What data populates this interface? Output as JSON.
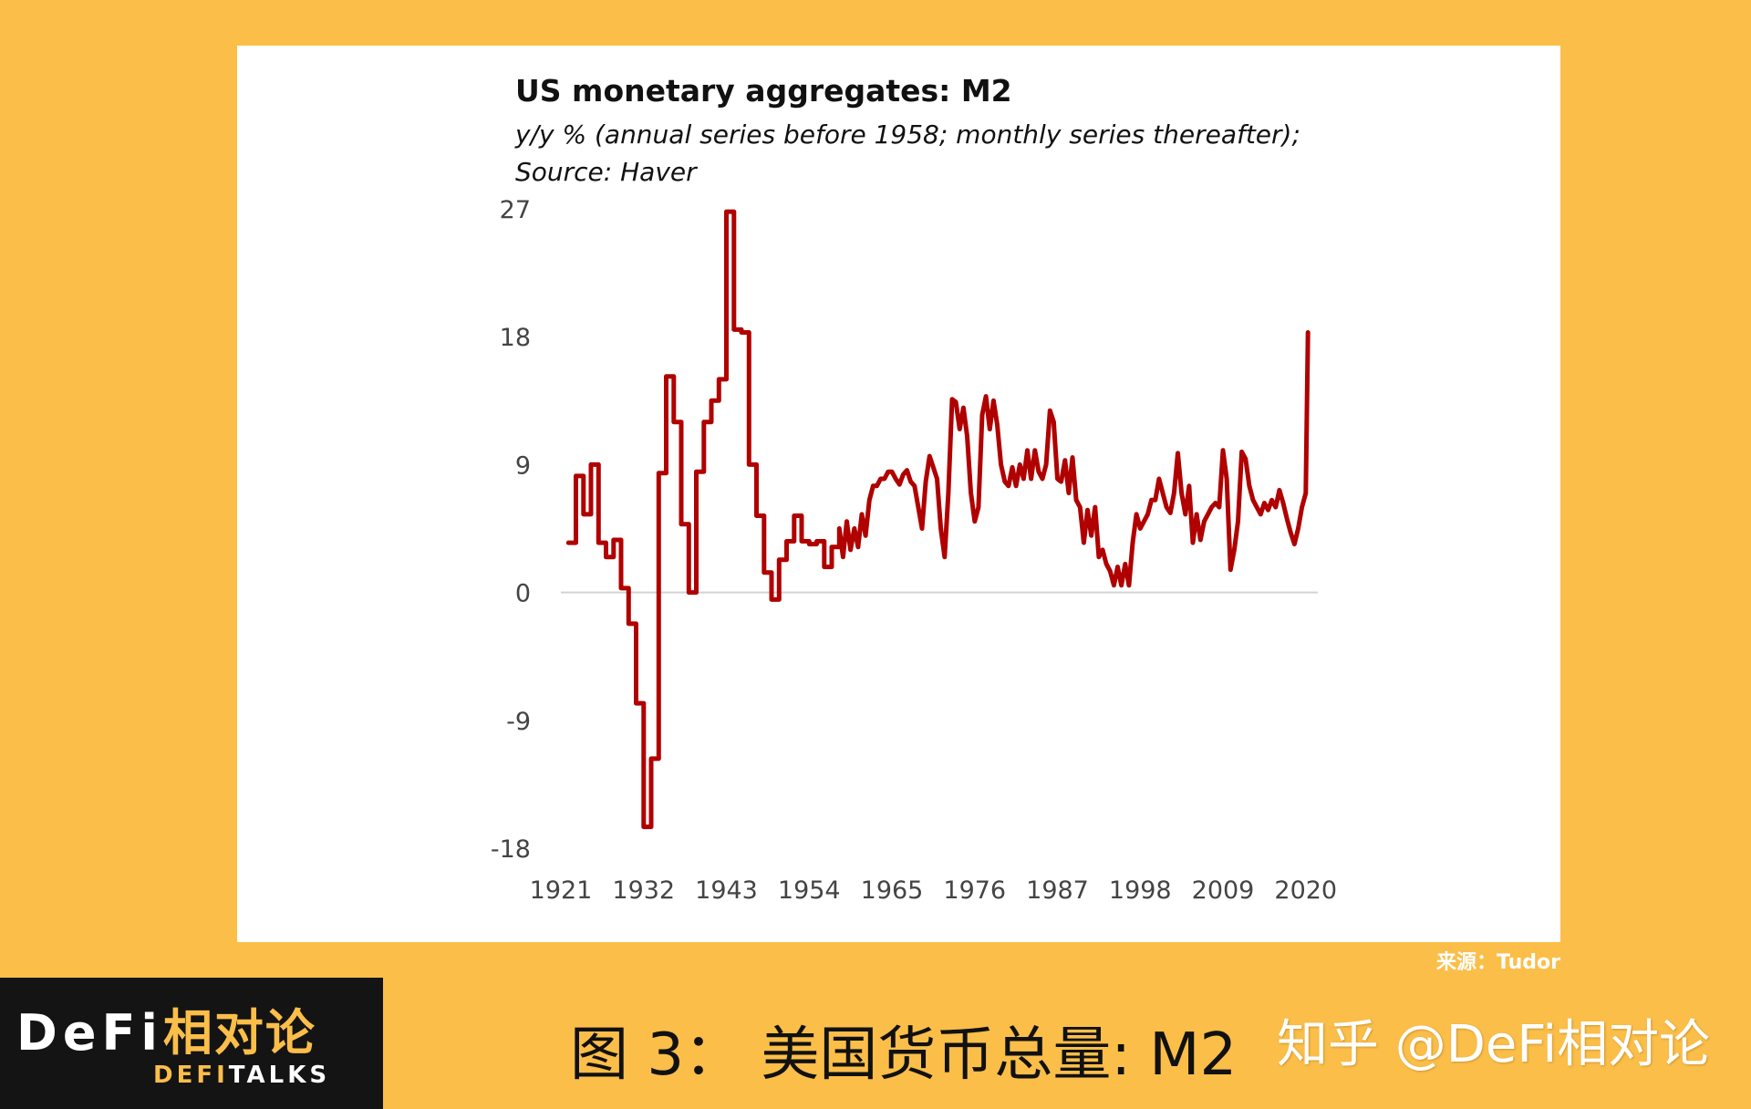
{
  "colors": {
    "background": "#FBBE49",
    "card": "#FFFFFF",
    "series": "#B00000",
    "zero_line": "#D3D3D3",
    "axis_text": "#444444"
  },
  "chart_data": {
    "type": "line",
    "title": "US monetary aggregates: M2",
    "subtitle_lines": [
      "y/y % (annual series before 1958; monthly series thereafter);",
      "Source: Haver"
    ],
    "xlabel": "",
    "ylabel": "",
    "x_ticks": [
      "1921",
      "1932",
      "1943",
      "1954",
      "1965",
      "1976",
      "1987",
      "1998",
      "2009",
      "2020"
    ],
    "y_ticks": [
      "27",
      "18",
      "9",
      "0",
      "-9",
      "-18"
    ],
    "xlim": [
      1921,
      2021
    ],
    "ylim": [
      -18,
      27
    ],
    "grid": false,
    "zero_line": true,
    "legend": "none",
    "series": [
      {
        "name": "",
        "points": [
          [
            1922.0,
            3.5
          ],
          [
            1923.0,
            3.5
          ],
          [
            1923.0,
            8.2
          ],
          [
            1924.0,
            8.2
          ],
          [
            1924.0,
            5.5
          ],
          [
            1925.0,
            5.5
          ],
          [
            1925.0,
            9.0
          ],
          [
            1926.0,
            9.0
          ],
          [
            1926.0,
            3.5
          ],
          [
            1927.0,
            3.5
          ],
          [
            1927.0,
            2.5
          ],
          [
            1928.0,
            2.5
          ],
          [
            1928.0,
            3.7
          ],
          [
            1929.0,
            3.7
          ],
          [
            1929.0,
            0.3
          ],
          [
            1930.0,
            0.3
          ],
          [
            1930.0,
            -2.2
          ],
          [
            1931.0,
            -2.2
          ],
          [
            1931.0,
            -7.8
          ],
          [
            1932.0,
            -7.8
          ],
          [
            1932.0,
            -16.5
          ],
          [
            1933.0,
            -16.5
          ],
          [
            1933.0,
            -11.7
          ],
          [
            1934.0,
            -11.7
          ],
          [
            1934.0,
            8.4
          ],
          [
            1935.0,
            8.4
          ],
          [
            1935.0,
            15.2
          ],
          [
            1936.0,
            15.2
          ],
          [
            1936.0,
            12.0
          ],
          [
            1937.0,
            12.0
          ],
          [
            1937.0,
            4.8
          ],
          [
            1938.0,
            4.8
          ],
          [
            1938.0,
            0.0
          ],
          [
            1939.0,
            0.0
          ],
          [
            1939.0,
            8.5
          ],
          [
            1940.0,
            8.5
          ],
          [
            1940.0,
            12.0
          ],
          [
            1941.0,
            12.0
          ],
          [
            1941.0,
            13.5
          ],
          [
            1942.0,
            13.5
          ],
          [
            1942.0,
            15.0
          ],
          [
            1943.0,
            15.0
          ],
          [
            1943.0,
            26.8
          ],
          [
            1944.0,
            26.8
          ],
          [
            1944.0,
            18.5
          ],
          [
            1945.0,
            18.5
          ],
          [
            1945.0,
            18.3
          ],
          [
            1946.0,
            18.3
          ],
          [
            1946.0,
            9.0
          ],
          [
            1947.0,
            9.0
          ],
          [
            1947.0,
            5.4
          ],
          [
            1948.0,
            5.4
          ],
          [
            1948.0,
            1.4
          ],
          [
            1949.0,
            1.4
          ],
          [
            1949.0,
            -0.5
          ],
          [
            1950.0,
            -0.5
          ],
          [
            1950.0,
            2.3
          ],
          [
            1951.0,
            2.3
          ],
          [
            1951.0,
            3.6
          ],
          [
            1952.0,
            3.6
          ],
          [
            1952.0,
            5.4
          ],
          [
            1953.0,
            5.4
          ],
          [
            1953.0,
            3.6
          ],
          [
            1954.0,
            3.6
          ],
          [
            1954.0,
            3.4
          ],
          [
            1955.0,
            3.4
          ],
          [
            1955.0,
            3.6
          ],
          [
            1956.0,
            3.6
          ],
          [
            1956.0,
            1.8
          ],
          [
            1957.0,
            1.8
          ],
          [
            1957.0,
            3.2
          ],
          [
            1958.0,
            3.2
          ],
          [
            1958.0,
            4.5
          ],
          [
            1958.5,
            2.5
          ],
          [
            1959.0,
            5.0
          ],
          [
            1959.5,
            3.0
          ],
          [
            1960.0,
            4.5
          ],
          [
            1960.5,
            3.2
          ],
          [
            1961.0,
            5.5
          ],
          [
            1961.5,
            4.0
          ],
          [
            1962.0,
            6.5
          ],
          [
            1962.5,
            7.5
          ],
          [
            1963.0,
            7.5
          ],
          [
            1963.5,
            8.0
          ],
          [
            1964.0,
            8.0
          ],
          [
            1964.5,
            8.5
          ],
          [
            1965.0,
            8.5
          ],
          [
            1965.5,
            8.0
          ],
          [
            1966.0,
            7.6
          ],
          [
            1966.5,
            8.3
          ],
          [
            1967.0,
            8.6
          ],
          [
            1967.5,
            7.8
          ],
          [
            1968.0,
            7.5
          ],
          [
            1968.5,
            6.0
          ],
          [
            1969.0,
            4.5
          ],
          [
            1969.5,
            7.8
          ],
          [
            1970.0,
            9.6
          ],
          [
            1970.5,
            8.8
          ],
          [
            1971.0,
            8.0
          ],
          [
            1971.5,
            4.5
          ],
          [
            1972.0,
            2.5
          ],
          [
            1972.5,
            7.0
          ],
          [
            1973.0,
            13.6
          ],
          [
            1973.5,
            13.4
          ],
          [
            1974.0,
            11.5
          ],
          [
            1974.5,
            13.0
          ],
          [
            1975.0,
            11.0
          ],
          [
            1975.5,
            7.0
          ],
          [
            1976.0,
            5.0
          ],
          [
            1976.5,
            6.0
          ],
          [
            1977.0,
            12.5
          ],
          [
            1977.5,
            13.8
          ],
          [
            1978.0,
            11.5
          ],
          [
            1978.5,
            13.5
          ],
          [
            1979.0,
            11.8
          ],
          [
            1979.5,
            9.0
          ],
          [
            1980.0,
            7.8
          ],
          [
            1980.5,
            7.5
          ],
          [
            1981.0,
            8.8
          ],
          [
            1981.5,
            7.5
          ],
          [
            1982.0,
            9.0
          ],
          [
            1982.5,
            8.0
          ],
          [
            1983.0,
            10.0
          ],
          [
            1983.5,
            8.0
          ],
          [
            1984.0,
            10.0
          ],
          [
            1984.5,
            8.5
          ],
          [
            1985.0,
            8.0
          ],
          [
            1985.5,
            9.0
          ],
          [
            1986.0,
            12.8
          ],
          [
            1986.5,
            12.0
          ],
          [
            1987.0,
            8.0
          ],
          [
            1987.5,
            7.8
          ],
          [
            1988.0,
            9.3
          ],
          [
            1988.5,
            7.0
          ],
          [
            1989.0,
            9.5
          ],
          [
            1989.5,
            6.5
          ],
          [
            1990.0,
            6.0
          ],
          [
            1990.5,
            3.5
          ],
          [
            1991.0,
            5.8
          ],
          [
            1991.5,
            4.0
          ],
          [
            1992.0,
            6.0
          ],
          [
            1992.5,
            2.5
          ],
          [
            1993.0,
            3.0
          ],
          [
            1993.5,
            2.0
          ],
          [
            1994.0,
            1.5
          ],
          [
            1994.5,
            0.5
          ],
          [
            1995.0,
            1.8
          ],
          [
            1995.5,
            0.5
          ],
          [
            1996.0,
            2.0
          ],
          [
            1996.5,
            0.5
          ],
          [
            1997.0,
            3.5
          ],
          [
            1997.5,
            5.5
          ],
          [
            1998.0,
            4.5
          ],
          [
            1998.5,
            5.0
          ],
          [
            1999.0,
            5.5
          ],
          [
            1999.5,
            6.5
          ],
          [
            2000.0,
            6.5
          ],
          [
            2000.5,
            8.0
          ],
          [
            2001.0,
            7.0
          ],
          [
            2001.5,
            6.0
          ],
          [
            2002.0,
            5.6
          ],
          [
            2002.5,
            7.0
          ],
          [
            2003.0,
            9.8
          ],
          [
            2003.5,
            7.0
          ],
          [
            2004.0,
            5.5
          ],
          [
            2004.5,
            7.5
          ],
          [
            2005.0,
            3.5
          ],
          [
            2005.5,
            5.5
          ],
          [
            2006.0,
            3.7
          ],
          [
            2006.5,
            5.0
          ],
          [
            2007.0,
            5.5
          ],
          [
            2007.5,
            6.0
          ],
          [
            2008.0,
            6.3
          ],
          [
            2008.5,
            6.0
          ],
          [
            2009.0,
            10.0
          ],
          [
            2009.5,
            8.0
          ],
          [
            2010.0,
            1.6
          ],
          [
            2010.5,
            3.0
          ],
          [
            2011.0,
            5.0
          ],
          [
            2011.5,
            9.9
          ],
          [
            2012.0,
            9.4
          ],
          [
            2012.5,
            7.5
          ],
          [
            2013.0,
            6.5
          ],
          [
            2013.5,
            6.0
          ],
          [
            2014.0,
            5.5
          ],
          [
            2014.5,
            6.3
          ],
          [
            2015.0,
            5.8
          ],
          [
            2015.5,
            6.5
          ],
          [
            2016.0,
            6.0
          ],
          [
            2016.5,
            7.2
          ],
          [
            2017.0,
            6.3
          ],
          [
            2017.5,
            5.2
          ],
          [
            2018.0,
            4.2
          ],
          [
            2018.5,
            3.4
          ],
          [
            2019.0,
            4.5
          ],
          [
            2019.5,
            6.0
          ],
          [
            2020.0,
            7.0
          ],
          [
            2020.3,
            18.3
          ]
        ]
      }
    ]
  },
  "source_credit": "来源：Tudor",
  "logo": {
    "main_latin": "DeFi",
    "main_cn": "相对论",
    "sub_gold": "DEFI",
    "sub_white": "TALKS"
  },
  "figure_caption": "图 3： 美国货币总量: M2",
  "watermark": "知乎 @DeFi相对论"
}
